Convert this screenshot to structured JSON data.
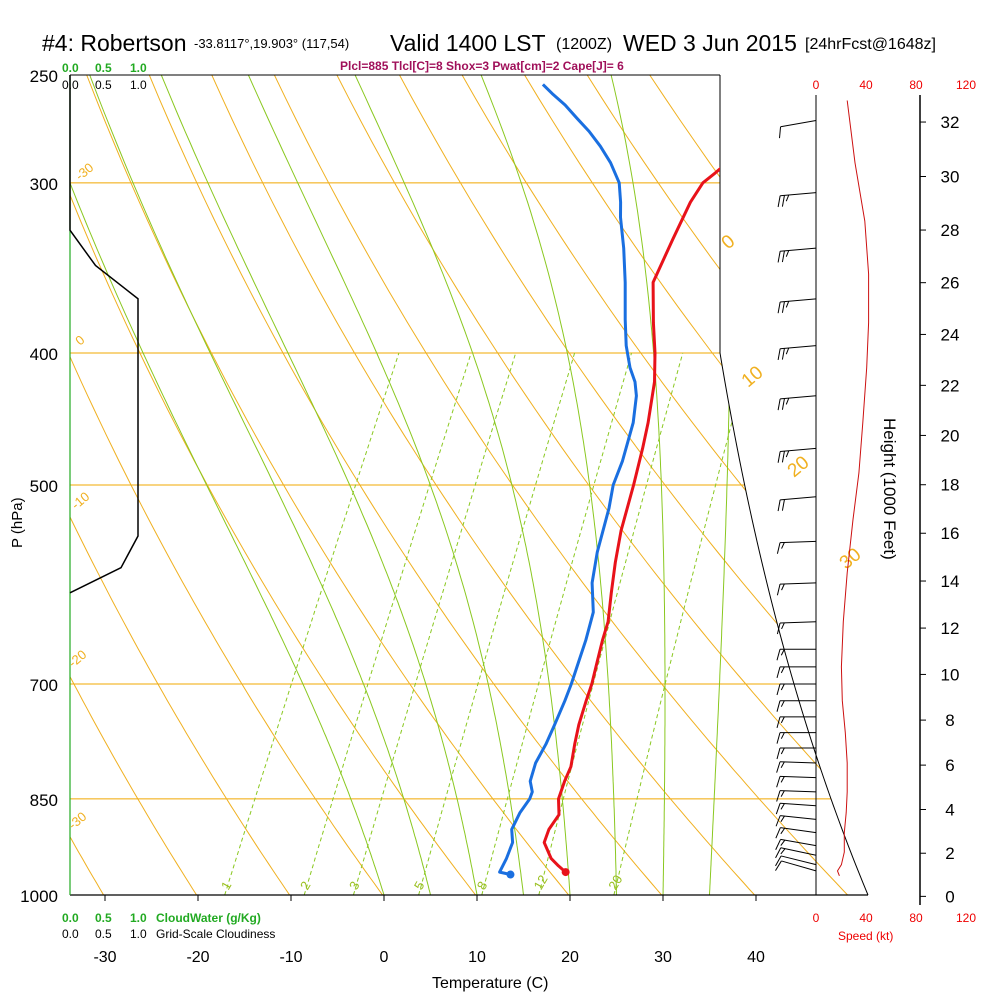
{
  "header": {
    "station": "#4: Robertson",
    "coords": "-33.8117°,19.903° (117,54)",
    "valid": "Valid 1400 LST",
    "zulu": "(1200Z)",
    "date": "WED 3 Jun 2015",
    "fcst": "[24hrFcst@1648z]",
    "params": "Plcl=885 Tlcl[C]=8 Shox=3 Pwat[cm]=2 Cape[J]= 6"
  },
  "colors": {
    "temperature": "#e8121a",
    "dewpoint": "#1a6fe0",
    "isobar": "#f0a800",
    "dry_adiabat": "#f0b020",
    "moist_adiabat": "#8ac820",
    "mixing_ratio": "#8ac820",
    "cloud": "#22aa22",
    "title_params": "#a0105a",
    "wind_speed": "#cc1010"
  },
  "chart_data": {
    "type": "line",
    "xlabel": "Temperature (C)",
    "ylabel": "P (hPa)",
    "right_label": "Height (1000 Feet)",
    "x_ticks": [
      -30,
      -20,
      -10,
      0,
      10,
      20,
      30,
      40
    ],
    "pressure_levels": [
      250,
      300,
      400,
      500,
      700,
      850,
      1000
    ],
    "pressure_tick_labels": [
      "250",
      "300",
      "400",
      "500",
      "700",
      "850",
      "1000"
    ],
    "height_ticks_kft": [
      0,
      2,
      4,
      6,
      8,
      10,
      12,
      14,
      16,
      18,
      20,
      22,
      24,
      26,
      28,
      30,
      32
    ],
    "dry_adiabat_labels": [
      "-30",
      "-20",
      "-10",
      "0",
      "10",
      "20",
      "30",
      "40"
    ],
    "dry_adiabat_label_values": [
      -30,
      -20,
      -10,
      0,
      10,
      20,
      30,
      40
    ],
    "mixing_ratio_labels": [
      "1",
      "2",
      "3",
      "5",
      "8",
      "12",
      "20"
    ],
    "mixing_ratio_values": [
      1,
      2,
      3,
      5,
      8,
      12,
      20
    ],
    "cloud_scale_labels": [
      "0.0",
      "0.5",
      "1.0"
    ],
    "cloud_water_label": "CloudWater (g/Kg)",
    "cloudiness_label": "Grid-Scale Cloudiness",
    "speed_ticks": [
      "0",
      "40",
      "80",
      "120"
    ],
    "speed_tick_values": [
      0,
      40,
      80,
      120
    ],
    "speed_label": "Speed (kt)",
    "series": [
      {
        "name": "Temperature",
        "points": [
          [
            18.3,
            962
          ],
          [
            17.2,
            952
          ],
          [
            16.0,
            940
          ],
          [
            14.4,
            915
          ],
          [
            14.2,
            895
          ],
          [
            14.5,
            873
          ],
          [
            13.6,
            850
          ],
          [
            13.3,
            825
          ],
          [
            13.2,
            805
          ],
          [
            12.4,
            775
          ],
          [
            11.8,
            750
          ],
          [
            11.3,
            720
          ],
          [
            11.0,
            700
          ],
          [
            10.4,
            675
          ],
          [
            9.8,
            650
          ],
          [
            9.4,
            630
          ],
          [
            8.2,
            600
          ],
          [
            7.0,
            570
          ],
          [
            5.9,
            540
          ],
          [
            4.8,
            500
          ],
          [
            3.8,
            470
          ],
          [
            3.0,
            450
          ],
          [
            1.5,
            420
          ],
          [
            0.0,
            400
          ],
          [
            -1.8,
            380
          ],
          [
            -4.0,
            355
          ],
          [
            -4.2,
            330
          ],
          [
            -4.3,
            310
          ],
          [
            -4.0,
            300
          ],
          [
            -3.2,
            295
          ],
          [
            -2.2,
            288
          ],
          [
            -0.6,
            275
          ],
          [
            0.0,
            262
          ]
        ]
      },
      {
        "name": "Dewpoint",
        "points": [
          [
            12.5,
            966
          ],
          [
            11.2,
            962
          ],
          [
            11.2,
            940
          ],
          [
            11.0,
            915
          ],
          [
            10.2,
            895
          ],
          [
            10.2,
            870
          ],
          [
            10.5,
            850
          ],
          [
            10.4,
            840
          ],
          [
            9.6,
            825
          ],
          [
            9.2,
            800
          ],
          [
            9.3,
            775
          ],
          [
            9.2,
            750
          ],
          [
            9.0,
            720
          ],
          [
            8.8,
            700
          ],
          [
            8.4,
            675
          ],
          [
            8.0,
            650
          ],
          [
            7.3,
            620
          ],
          [
            5.6,
            590
          ],
          [
            4.5,
            560
          ],
          [
            3.4,
            520
          ],
          [
            2.6,
            500
          ],
          [
            2.3,
            480
          ],
          [
            1.4,
            450
          ],
          [
            0.3,
            430
          ],
          [
            -0.6,
            420
          ],
          [
            -1.9,
            410
          ],
          [
            -3.5,
            395
          ],
          [
            -5.0,
            378
          ],
          [
            -7.0,
            355
          ],
          [
            -9.0,
            335
          ],
          [
            -11.0,
            318
          ],
          [
            -11.8,
            310
          ],
          [
            -13.0,
            300
          ],
          [
            -15.0,
            290
          ],
          [
            -17.0,
            282
          ],
          [
            -19.0,
            275
          ],
          [
            -21.0,
            269
          ],
          [
            -23.0,
            263
          ],
          [
            -25.0,
            258
          ],
          [
            -26.5,
            254
          ]
        ]
      }
    ],
    "cloudiness": [
      [
        0.0,
        250
      ],
      [
        0.0,
        325
      ],
      [
        0.15,
        345
      ],
      [
        0.4,
        365
      ],
      [
        0.4,
        400
      ],
      [
        0.4,
        500
      ],
      [
        0.4,
        545
      ],
      [
        0.3,
        575
      ],
      [
        0.0,
        600
      ]
    ],
    "wind_speed": [
      [
        16,
        261
      ],
      [
        20,
        290
      ],
      [
        25,
        320
      ],
      [
        27,
        350
      ],
      [
        27,
        380
      ],
      [
        26,
        410
      ],
      [
        24,
        450
      ],
      [
        22,
        490
      ],
      [
        19,
        530
      ],
      [
        16,
        580
      ],
      [
        14,
        630
      ],
      [
        13,
        680
      ],
      [
        13.5,
        720
      ],
      [
        15,
        760
      ],
      [
        16,
        800
      ],
      [
        16,
        840
      ],
      [
        15.5,
        870
      ],
      [
        14.5,
        900
      ],
      [
        14.5,
        930
      ],
      [
        13,
        950
      ],
      [
        11,
        960
      ],
      [
        12,
        968
      ]
    ],
    "wind_barbs": [
      {
        "p": 270,
        "dir": 260,
        "spd": 10
      },
      {
        "p": 305,
        "dir": 265,
        "spd": 25
      },
      {
        "p": 335,
        "dir": 265,
        "spd": 25
      },
      {
        "p": 365,
        "dir": 265,
        "spd": 25
      },
      {
        "p": 395,
        "dir": 265,
        "spd": 25
      },
      {
        "p": 430,
        "dir": 265,
        "spd": 25
      },
      {
        "p": 470,
        "dir": 265,
        "spd": 25
      },
      {
        "p": 510,
        "dir": 265,
        "spd": 20
      },
      {
        "p": 550,
        "dir": 268,
        "spd": 15
      },
      {
        "p": 590,
        "dir": 268,
        "spd": 15
      },
      {
        "p": 630,
        "dir": 268,
        "spd": 15
      },
      {
        "p": 660,
        "dir": 270,
        "spd": 15
      },
      {
        "p": 680,
        "dir": 270,
        "spd": 15
      },
      {
        "p": 700,
        "dir": 270,
        "spd": 15
      },
      {
        "p": 720,
        "dir": 270,
        "spd": 15
      },
      {
        "p": 740,
        "dir": 270,
        "spd": 15
      },
      {
        "p": 760,
        "dir": 270,
        "spd": 15
      },
      {
        "p": 780,
        "dir": 270,
        "spd": 15
      },
      {
        "p": 800,
        "dir": 272,
        "spd": 15
      },
      {
        "p": 820,
        "dir": 272,
        "spd": 15
      },
      {
        "p": 840,
        "dir": 272,
        "spd": 15
      },
      {
        "p": 860,
        "dir": 274,
        "spd": 15
      },
      {
        "p": 880,
        "dir": 276,
        "spd": 15
      },
      {
        "p": 900,
        "dir": 278,
        "spd": 15
      },
      {
        "p": 920,
        "dir": 280,
        "spd": 15
      },
      {
        "p": 935,
        "dir": 282,
        "spd": 15
      },
      {
        "p": 950,
        "dir": 284,
        "spd": 10
      },
      {
        "p": 960,
        "dir": 286,
        "spd": 10
      }
    ]
  }
}
